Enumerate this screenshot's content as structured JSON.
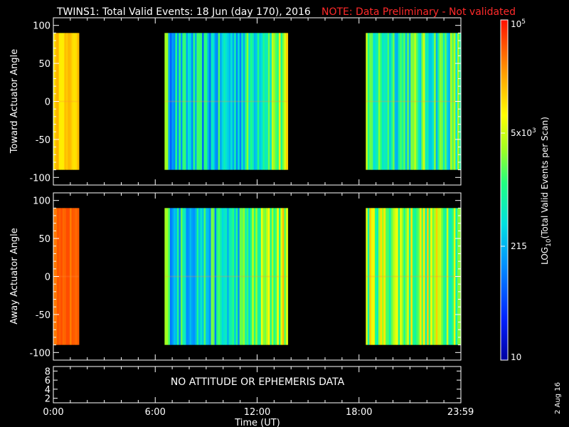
{
  "header": {
    "title": "TWINS1: Total Valid Events: 18 Jun (day 170), 2016",
    "note": "NOTE: Data Preliminary - Not validated",
    "note_color": "#ff2020"
  },
  "panels": [
    {
      "ylabel": "Toward Actuator Angle",
      "yticks": [
        "100",
        "50",
        "0",
        "-50",
        "-100"
      ]
    },
    {
      "ylabel": "Away Actuator Angle",
      "yticks": [
        "100",
        "50",
        "0",
        "-50",
        "-100"
      ]
    }
  ],
  "attitude_panel": {
    "message": "NO ATTITUDE OR EPHEMERIS DATA",
    "yticks": [
      "8",
      "6",
      "4",
      "2"
    ]
  },
  "xaxis": {
    "label": "Time (UT)",
    "ticks": [
      "0:00",
      "6:00",
      "12:00",
      "18:00",
      "23:59"
    ]
  },
  "colorbar": {
    "label_prefix": "LOG",
    "label_sub": "10",
    "label_suffix": "(Total Valid Events per Scan)",
    "tick_top_base": "10",
    "tick_top_exp": "5",
    "tick_mid_base": "5x10",
    "tick_mid_exp": "3",
    "tick_low": "215",
    "tick_bottom": "10"
  },
  "footer": {
    "date_stamp": "2 Aug 16"
  },
  "chart_data": {
    "type": "heatmap",
    "x_unit": "hours UT",
    "xlim": [
      0,
      24
    ],
    "ylim": [
      -110,
      110
    ],
    "angle_range": [
      -90,
      90
    ],
    "color_scale": "log10",
    "color_range": [
      10,
      100000
    ],
    "segments": [
      {
        "start": 0.0,
        "end": 1.5,
        "toward_level": 0.78,
        "away_level": 0.9
      },
      {
        "start": 6.55,
        "end": 13.8,
        "toward_level": 0.38,
        "away_level": 0.42
      },
      {
        "start": 18.4,
        "end": 24.0,
        "toward_level": 0.5,
        "away_level": 0.62
      }
    ]
  }
}
